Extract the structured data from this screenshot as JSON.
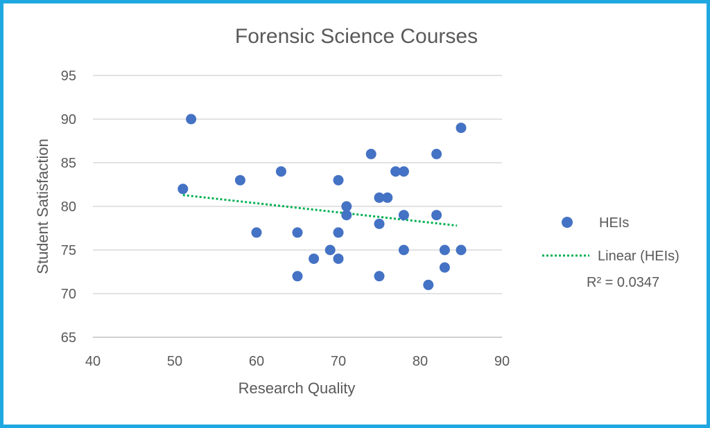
{
  "chart_data": {
    "type": "scatter",
    "title": "Forensic Science Courses",
    "xlabel": "Research Quality",
    "ylabel": "Student Satisfaction",
    "xlim": [
      40,
      90
    ],
    "ylim": [
      65,
      95
    ],
    "xticks": [
      40,
      50,
      60,
      70,
      80,
      90
    ],
    "yticks": [
      65,
      70,
      75,
      80,
      85,
      90,
      95
    ],
    "grid": true,
    "legend_position": "right",
    "series": [
      {
        "name": "HEIs",
        "color": "#4472c4",
        "points": [
          {
            "x": 51,
            "y": 82
          },
          {
            "x": 52,
            "y": 90
          },
          {
            "x": 58,
            "y": 83
          },
          {
            "x": 60,
            "y": 77
          },
          {
            "x": 63,
            "y": 84
          },
          {
            "x": 65,
            "y": 77
          },
          {
            "x": 65,
            "y": 72
          },
          {
            "x": 67,
            "y": 74
          },
          {
            "x": 69,
            "y": 75
          },
          {
            "x": 70,
            "y": 83
          },
          {
            "x": 70,
            "y": 77
          },
          {
            "x": 70,
            "y": 74
          },
          {
            "x": 71,
            "y": 80
          },
          {
            "x": 71,
            "y": 79
          },
          {
            "x": 74,
            "y": 86
          },
          {
            "x": 75,
            "y": 81
          },
          {
            "x": 76,
            "y": 81
          },
          {
            "x": 75,
            "y": 78
          },
          {
            "x": 75,
            "y": 72
          },
          {
            "x": 77,
            "y": 84
          },
          {
            "x": 78,
            "y": 84
          },
          {
            "x": 78,
            "y": 79
          },
          {
            "x": 78,
            "y": 75
          },
          {
            "x": 81,
            "y": 71
          },
          {
            "x": 82,
            "y": 86
          },
          {
            "x": 82,
            "y": 79
          },
          {
            "x": 83,
            "y": 75
          },
          {
            "x": 83,
            "y": 73
          },
          {
            "x": 85,
            "y": 89
          },
          {
            "x": 85,
            "y": 75
          }
        ]
      }
    ],
    "trendline": {
      "name": "Linear (HEIs)",
      "type": "linear",
      "color": "#00b050",
      "style": "dotted",
      "start": {
        "x": 51,
        "y": 81.3
      },
      "end": {
        "x": 84.5,
        "y": 77.8
      },
      "r_squared_label": "R² = 0.0347"
    }
  }
}
